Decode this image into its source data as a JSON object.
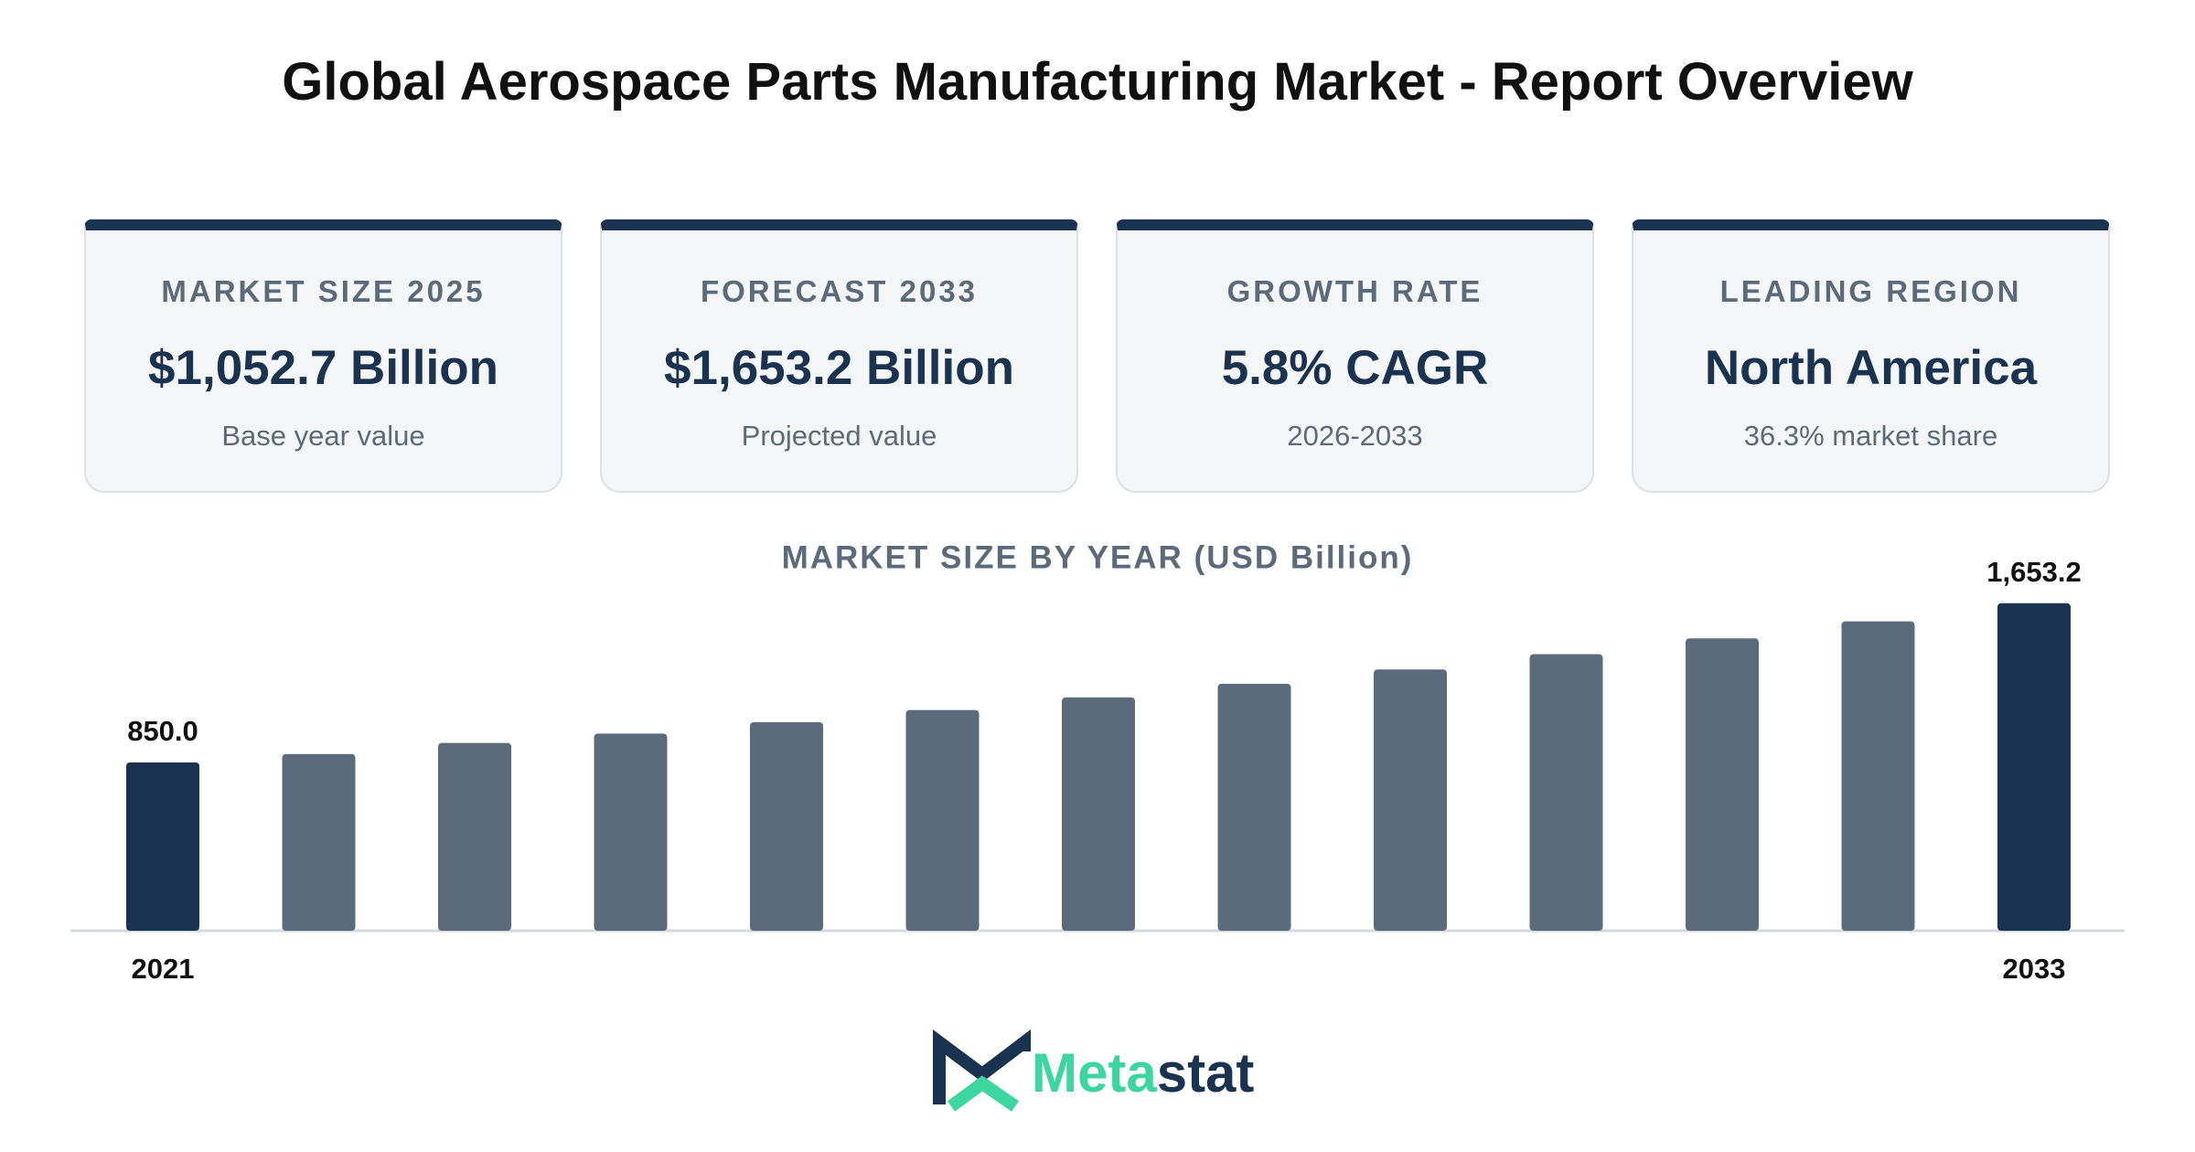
{
  "header": {
    "title": "Global Aerospace Parts Manufacturing Market - Report Overview"
  },
  "cards": [
    {
      "label": "MARKET SIZE 2025",
      "value": "$1,052.7 Billion",
      "note": "Base year value"
    },
    {
      "label": "FORECAST 2033",
      "value": "$1,653.2 Billion",
      "note": "Projected value"
    },
    {
      "label": "GROWTH RATE",
      "value": "5.8% CAGR",
      "note": "2026-2033"
    },
    {
      "label": "LEADING REGION",
      "value": "North America",
      "note": "36.3% market share"
    }
  ],
  "chart_data": {
    "type": "bar",
    "title": "MARKET SIZE BY YEAR (USD Billion)",
    "categories": [
      "2021",
      null,
      null,
      null,
      null,
      null,
      null,
      null,
      null,
      null,
      null,
      null,
      "2033"
    ],
    "values": [
      850.0,
      892,
      948,
      995,
      1052.7,
      1114,
      1178,
      1247,
      1319,
      1396,
      1476,
      1562,
      1653.2
    ],
    "value_labels": [
      "850.0",
      null,
      null,
      null,
      null,
      null,
      null,
      null,
      null,
      null,
      null,
      null,
      "1,653.2"
    ],
    "colors": [
      "#1a3350",
      "#5b6b7b",
      "#5b6b7b",
      "#5b6b7b",
      "#5b6b7b",
      "#5b6b7b",
      "#5b6b7b",
      "#5b6b7b",
      "#5b6b7b",
      "#5b6b7b",
      "#5b6b7b",
      "#5b6b7b",
      "#1a3350"
    ],
    "ylim": [
      0,
      1800
    ]
  },
  "brand": [
    "Meta",
    "stat"
  ]
}
